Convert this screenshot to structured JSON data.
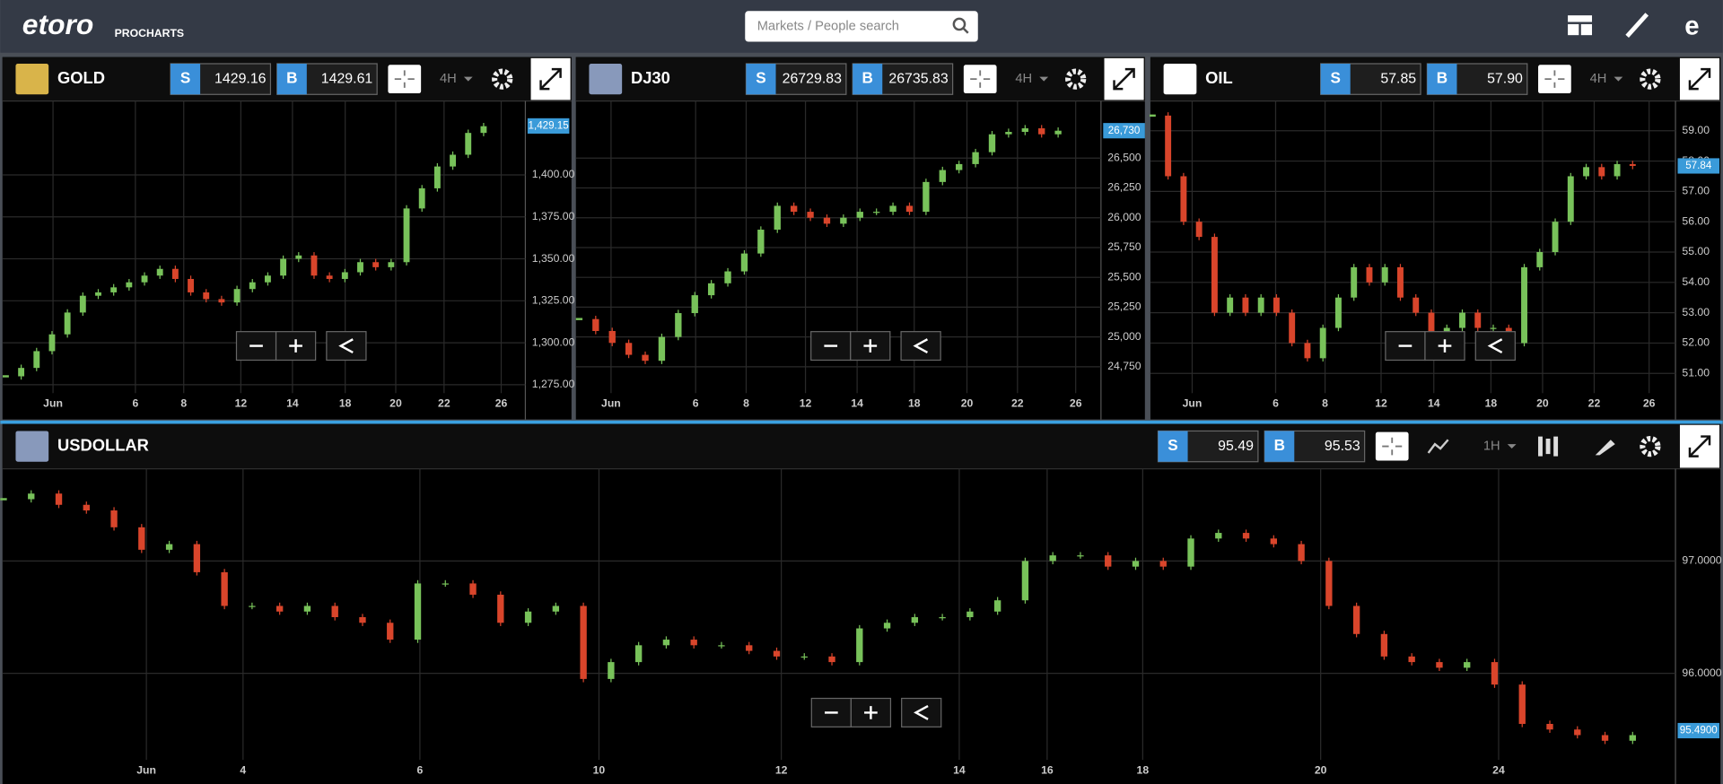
{
  "header": {
    "logo": "etoro",
    "product": "PROCHARTS",
    "search_placeholder": "Markets / People search"
  },
  "panels": [
    {
      "instrument": "GOLD",
      "sell_label": "S",
      "sell": "1429.16",
      "buy_label": "B",
      "buy": "1429.61",
      "timeframe": "4H",
      "last_price": {
        "value": 1429.15,
        "label": "1,429.15"
      },
      "chart": {
        "type": "candlestick",
        "closes": [
          1280,
          1285,
          1295,
          1305,
          1318,
          1328,
          1330,
          1333,
          1336,
          1340,
          1344,
          1338,
          1330,
          1326,
          1324,
          1332,
          1336,
          1340,
          1350,
          1352,
          1340,
          1338,
          1342,
          1348,
          1345,
          1348,
          1380,
          1392,
          1405,
          1412,
          1425,
          1429
        ],
        "ylim": [
          1270,
          1444
        ],
        "yticks": [
          {
            "value": 1275,
            "label": "1,275.00"
          },
          {
            "value": 1300,
            "label": "1,300.00"
          },
          {
            "value": 1325,
            "label": "1,325.00"
          },
          {
            "value": 1350,
            "label": "1,350.00"
          },
          {
            "value": 1375,
            "label": "1,375.00"
          },
          {
            "value": 1400,
            "label": "1,400.00"
          }
        ],
        "xticks": [
          "Jun",
          "6",
          "8",
          "12",
          "14",
          "18",
          "20",
          "22",
          "26"
        ]
      }
    },
    {
      "instrument": "DJ30",
      "sell_label": "S",
      "sell": "26729.83",
      "buy_label": "B",
      "buy": "26735.83",
      "timeframe": "4H",
      "last_price": {
        "value": 26730,
        "label": "26,730"
      },
      "chart": {
        "type": "candlestick",
        "closes": [
          25150,
          25050,
          24950,
          24850,
          24800,
          25000,
          25200,
          25350,
          25450,
          25550,
          25700,
          25900,
          26100,
          26050,
          26000,
          25950,
          26000,
          26050,
          26050,
          26100,
          26050,
          26300,
          26400,
          26450,
          26550,
          26700,
          26720,
          26750,
          26700,
          26730
        ],
        "ylim": [
          24529,
          26979
        ],
        "yticks": [
          {
            "value": 24750,
            "label": "24,750"
          },
          {
            "value": 25000,
            "label": "25,000"
          },
          {
            "value": 25250,
            "label": "25,250"
          },
          {
            "value": 25500,
            "label": "25,500"
          },
          {
            "value": 25750,
            "label": "25,750"
          },
          {
            "value": 26000,
            "label": "26,000"
          },
          {
            "value": 26250,
            "label": "26,250"
          },
          {
            "value": 26500,
            "label": "26,500"
          }
        ],
        "xticks": [
          "Jun",
          "6",
          "8",
          "12",
          "14",
          "18",
          "20",
          "22",
          "26"
        ]
      }
    },
    {
      "instrument": "OIL",
      "sell_label": "S",
      "sell": "57.85",
      "buy_label": "B",
      "buy": "57.90",
      "timeframe": "4H",
      "last_price": {
        "value": 57.84,
        "label": "57.84"
      },
      "chart": {
        "type": "candlestick",
        "closes": [
          59.5,
          57.5,
          56.0,
          55.5,
          53.0,
          53.5,
          53.0,
          53.5,
          53.0,
          52.0,
          51.5,
          52.5,
          53.5,
          54.5,
          54.0,
          54.5,
          53.5,
          53.0,
          52.0,
          52.5,
          53.0,
          52.5,
          52.5,
          52.0,
          54.5,
          55.0,
          56.0,
          57.5,
          57.8,
          57.5,
          57.9,
          57.84
        ],
        "ylim": [
          50.35,
          59.98
        ],
        "yticks": [
          {
            "value": 51,
            "label": "51.00"
          },
          {
            "value": 52,
            "label": "52.00"
          },
          {
            "value": 53,
            "label": "53.00"
          },
          {
            "value": 54,
            "label": "54.00"
          },
          {
            "value": 55,
            "label": "55.00"
          },
          {
            "value": 56,
            "label": "56.00"
          },
          {
            "value": 57,
            "label": "57.00"
          },
          {
            "value": 58,
            "label": "58.00"
          },
          {
            "value": 59,
            "label": "59.00"
          }
        ],
        "xticks": [
          "Jun",
          "6",
          "8",
          "12",
          "14",
          "18",
          "20",
          "22",
          "26"
        ]
      }
    },
    {
      "instrument": "USDOLLAR",
      "sell_label": "S",
      "sell": "95.49",
      "buy_label": "B",
      "buy": "95.53",
      "timeframe": "1H",
      "last_price": {
        "value": 95.49,
        "label": "95.4900"
      },
      "chart": {
        "type": "candlestick",
        "closes": [
          97.55,
          97.6,
          97.5,
          97.45,
          97.3,
          97.1,
          97.15,
          96.9,
          96.6,
          96.6,
          96.55,
          96.6,
          96.5,
          96.45,
          96.3,
          96.8,
          96.8,
          96.7,
          96.45,
          96.55,
          96.6,
          95.95,
          96.1,
          96.25,
          96.3,
          96.25,
          96.25,
          96.2,
          96.15,
          96.15,
          96.1,
          96.4,
          96.45,
          96.5,
          96.5,
          96.55,
          96.65,
          97.0,
          97.05,
          97.05,
          96.95,
          97.0,
          96.95,
          97.2,
          97.25,
          97.2,
          97.15,
          97.0,
          96.6,
          96.35,
          96.15,
          96.1,
          96.05,
          96.1,
          95.9,
          95.55,
          95.5,
          95.45,
          95.4,
          95.45
        ],
        "ylim": [
          95.23,
          97.82
        ],
        "yticks": [
          {
            "value": 96,
            "label": "96.0000"
          },
          {
            "value": 97,
            "label": "97.0000"
          }
        ],
        "xticks": [
          "Jun",
          "4",
          "6",
          "10",
          "12",
          "14",
          "16",
          "18",
          "20",
          "24"
        ]
      }
    }
  ]
}
